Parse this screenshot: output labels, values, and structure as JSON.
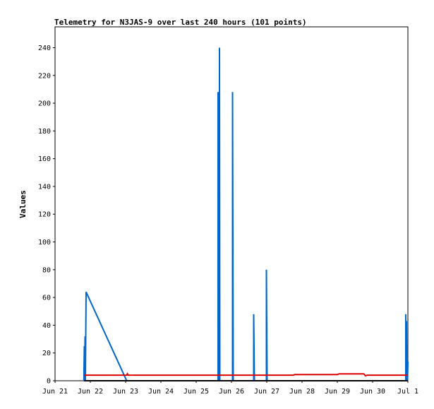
{
  "chart_data": {
    "type": "line",
    "title": "Telemetry for N3JAS-9 over last 240 hours (101 points)",
    "xlabel": "",
    "ylabel": "Values",
    "x_ticks": [
      "Jun 21",
      "Jun 22",
      "Jun 23",
      "Jun 24",
      "Jun 25",
      "Jun 26",
      "Jun 27",
      "Jun 28",
      "Jun 29",
      "Jun 30",
      "Jul 1"
    ],
    "x_tick_days": [
      0,
      1,
      2,
      3,
      4,
      5,
      6,
      7,
      8,
      9,
      10
    ],
    "xlim_days": [
      0,
      10
    ],
    "y_ticks": [
      0,
      20,
      40,
      60,
      80,
      100,
      120,
      140,
      160,
      180,
      200,
      220,
      240
    ],
    "ylim": [
      0,
      255
    ],
    "grid": false,
    "legend": "none",
    "series": [
      {
        "color": "#0066cc",
        "points": [
          [
            0.82,
            0
          ],
          [
            0.82,
            8
          ],
          [
            0.83,
            25
          ],
          [
            0.84,
            0
          ],
          [
            0.85,
            32
          ],
          [
            0.86,
            0
          ],
          [
            0.88,
            64
          ],
          [
            2.03,
            0
          ],
          [
            4.62,
            0
          ],
          [
            4.62,
            208
          ],
          [
            4.65,
            0
          ],
          [
            4.66,
            240
          ],
          [
            4.67,
            0
          ],
          [
            5.03,
            0
          ],
          [
            5.03,
            208
          ],
          [
            5.05,
            0
          ],
          [
            5.63,
            0
          ],
          [
            5.63,
            48
          ],
          [
            5.65,
            0
          ],
          [
            5.99,
            0
          ],
          [
            5.99,
            80
          ],
          [
            6.01,
            0
          ],
          [
            9.94,
            0
          ],
          [
            9.94,
            48
          ],
          [
            9.95,
            0
          ],
          [
            9.96,
            43
          ],
          [
            9.97,
            0
          ],
          [
            9.98,
            25
          ],
          [
            9.99,
            0
          ],
          [
            10.0,
            14
          ]
        ]
      },
      {
        "color": "#dd0000",
        "points": [
          [
            0.82,
            4
          ],
          [
            2.03,
            4
          ],
          [
            2.05,
            5
          ],
          [
            2.07,
            4
          ],
          [
            6.75,
            4
          ],
          [
            6.8,
            4.5
          ],
          [
            8.0,
            4.5
          ],
          [
            8.05,
            5
          ],
          [
            8.75,
            5
          ],
          [
            8.8,
            3.5
          ],
          [
            8.85,
            4
          ],
          [
            10.0,
            4
          ]
        ]
      },
      {
        "color": "#000000",
        "points": [
          [
            0.82,
            0
          ],
          [
            10.0,
            0
          ]
        ]
      }
    ]
  }
}
